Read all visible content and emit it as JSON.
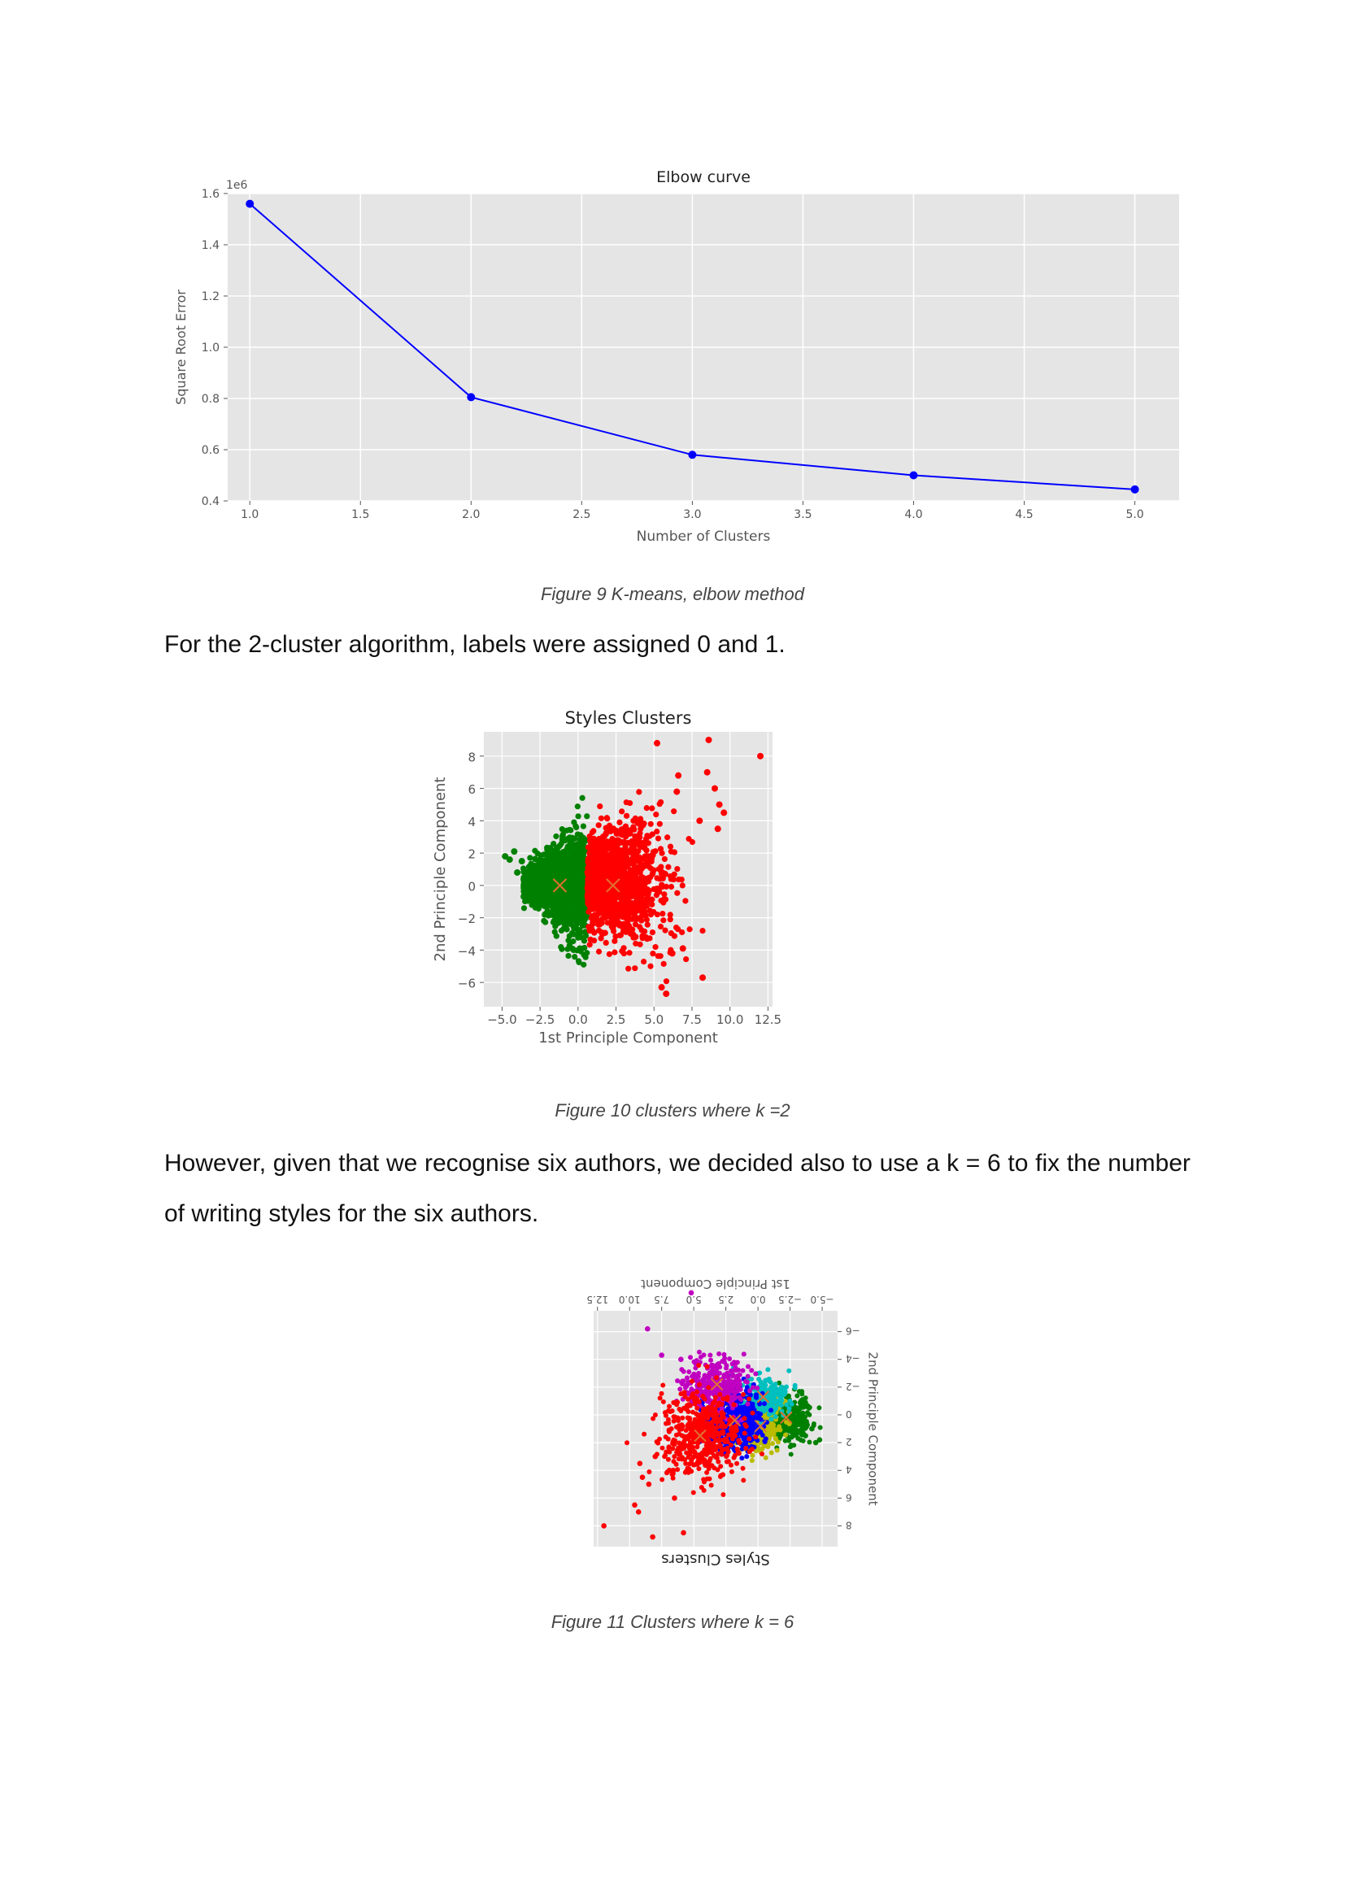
{
  "figures": [
    {
      "caption": "Figure 9 K-means, elbow method",
      "chart_data": {
        "type": "line",
        "title": "Elbow curve",
        "xlabel": "Number of Clusters",
        "ylabel": "Square Root Error",
        "y_offset_label": "1e6",
        "x": [
          1,
          2,
          3,
          4,
          5
        ],
        "series": [
          {
            "values": [
              1.56,
              0.805,
              0.58,
              0.5,
              0.445
            ],
            "color": "#0000ff"
          }
        ],
        "xlim": [
          0.9,
          5.2
        ],
        "ylim": [
          0.4,
          1.6
        ],
        "xticks": [
          "1.0",
          "1.5",
          "2.0",
          "2.5",
          "3.0",
          "3.5",
          "4.0",
          "4.5",
          "5.0"
        ],
        "yticks": [
          "0.4",
          "0.6",
          "0.8",
          "1.0",
          "1.2",
          "1.4",
          "1.6"
        ],
        "grid": true,
        "background": "#e5e5e5"
      }
    },
    {
      "caption": "Figure 10 clusters where k =2",
      "chart_data": {
        "type": "scatter",
        "title": "Styles Clusters",
        "xlabel": "1st Principle Component",
        "ylabel": "2nd Principle Component",
        "xlim": [
          -6.2,
          12.8
        ],
        "ylim": [
          -7.5,
          9.5
        ],
        "xticks": [
          "−5.0",
          "−2.5",
          "0.0",
          "2.5",
          "5.0",
          "7.5",
          "10.0",
          "12.5"
        ],
        "yticks": [
          "−6",
          "−4",
          "−2",
          "0",
          "2",
          "4",
          "6",
          "8"
        ],
        "grid": true,
        "background": "#e5e5e5",
        "clusters": [
          {
            "color": "#008000",
            "center": [
              -1.2,
              0.0
            ]
          },
          {
            "color": "#ff0000",
            "center": [
              2.3,
              0.0
            ]
          }
        ],
        "centroid_color": "#e07030",
        "outliers": [
          [
            5.2,
            8.8
          ],
          [
            8.6,
            9.0
          ],
          [
            12.0,
            8.0
          ],
          [
            6.6,
            6.8
          ],
          [
            8.5,
            7.0
          ],
          [
            9.0,
            6.0
          ],
          [
            6.5,
            5.8
          ],
          [
            9.3,
            5.0
          ],
          [
            9.6,
            4.5
          ],
          [
            8.0,
            4.0
          ],
          [
            9.2,
            3.5
          ],
          [
            -4.8,
            1.8
          ],
          [
            -4.5,
            1.6
          ],
          [
            -4.2,
            2.1
          ],
          [
            -3.7,
            1.5
          ],
          [
            -4.0,
            0.8
          ],
          [
            8.2,
            -5.7
          ],
          [
            5.5,
            -6.3
          ],
          [
            5.8,
            -6.7
          ],
          [
            6.9,
            -3.9
          ],
          [
            6.2,
            -4.2
          ]
        ]
      }
    },
    {
      "caption": "Figure 11 Clusters where k = 6",
      "chart_data": {
        "type": "scatter",
        "title": "Styles Clusters",
        "xlabel": "1st Principle Component",
        "ylabel": "2nd Principle Component",
        "rendered_upside_down": true,
        "xlim": [
          -6.2,
          12.8
        ],
        "ylim": [
          -7.5,
          9.5
        ],
        "xticks": [
          "−5.0",
          "−2.5",
          "0.0",
          "2.5",
          "5.0",
          "7.5",
          "10.0",
          "12.5"
        ],
        "yticks": [
          "−6",
          "−4",
          "−2",
          "0",
          "2",
          "4",
          "6",
          "8"
        ],
        "grid": true,
        "background": "#e5e5e5",
        "clusters": [
          {
            "color": "#008000",
            "center": [
              -2.2,
              0.2
            ]
          },
          {
            "color": "#bbbb00",
            "center": [
              -0.2,
              0.8
            ]
          },
          {
            "color": "#00bfbf",
            "center": [
              -0.4,
              -1.3
            ]
          },
          {
            "color": "#0000ff",
            "center": [
              1.8,
              0.4
            ]
          },
          {
            "color": "#c000c0",
            "center": [
              3.2,
              -2.2
            ]
          },
          {
            "color": "#ff0000",
            "center": [
              4.5,
              1.5
            ]
          }
        ],
        "centroid_color": "#e07030",
        "outliers": [
          [
            5.2,
            -8.8
          ],
          [
            8.6,
            -6.2
          ],
          [
            12.0,
            8.0
          ],
          [
            6.6,
            4.0
          ],
          [
            8.5,
            5.0
          ],
          [
            9.0,
            4.5
          ],
          [
            6.5,
            6.0
          ],
          [
            9.3,
            7.0
          ],
          [
            9.6,
            6.5
          ],
          [
            8.0,
            3.0
          ],
          [
            9.2,
            3.5
          ],
          [
            -4.8,
            1.8
          ],
          [
            -4.5,
            2.0
          ],
          [
            -4.2,
            1.0
          ],
          [
            -3.7,
            1.5
          ],
          [
            5.8,
            8.5
          ],
          [
            8.2,
            8.8
          ],
          [
            6.9,
            4.0
          ],
          [
            6.0,
            -4.0
          ],
          [
            7.5,
            -4.3
          ]
        ]
      }
    }
  ],
  "paragraphs": [
    "For the 2-cluster algorithm, labels were assigned 0 and 1.",
    "However, given that we recognise six authors, we decided also to use a k = 6 to fix the number of writing styles for the six authors."
  ]
}
